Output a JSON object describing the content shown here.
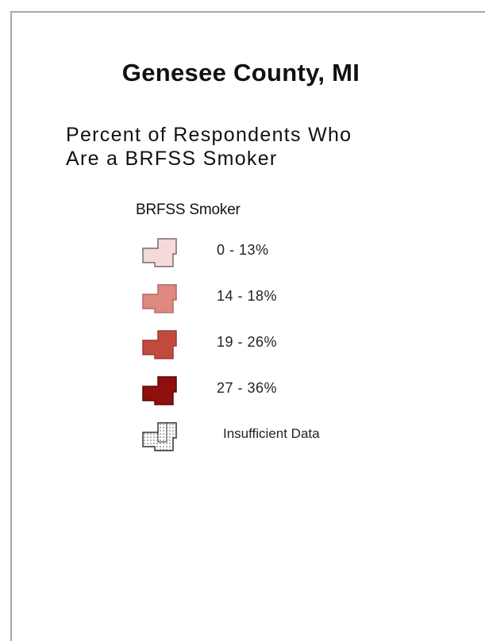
{
  "map": {
    "title": "Genesee County, MI",
    "subtitle_line1": "Percent of Respondents Who",
    "subtitle_line2": "Are a BRFSS Smoker"
  },
  "legend": {
    "title": "BRFSS Smoker",
    "items": [
      {
        "label": "0 - 13%",
        "color": "#f6d9d9"
      },
      {
        "label": "14 - 18%",
        "color": "#df8880"
      },
      {
        "label": "19 - 26%",
        "color": "#c24a3d"
      },
      {
        "label": "27 - 36%",
        "color": "#8f0e0e"
      },
      {
        "label": "Insufficient Data",
        "color": "#ffffff",
        "pattern": "dotted"
      }
    ]
  }
}
